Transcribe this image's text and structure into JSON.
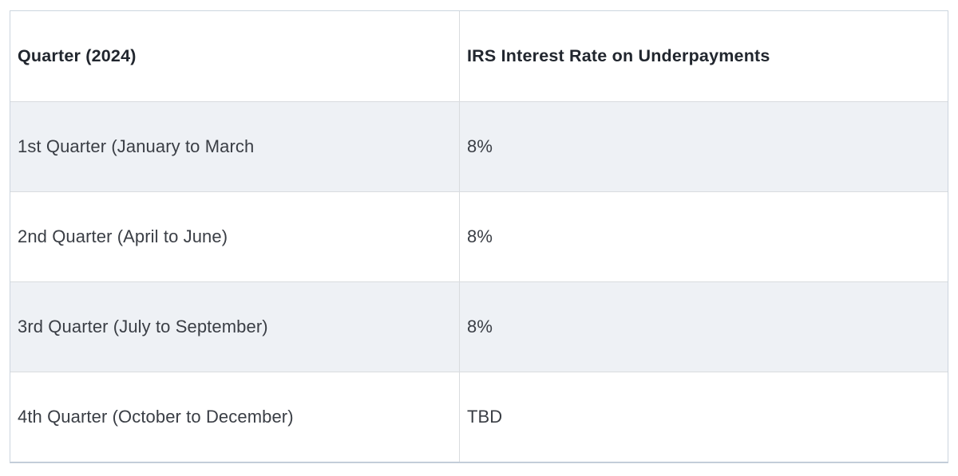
{
  "table": {
    "columns": [
      {
        "label": "Quarter (2024)"
      },
      {
        "label": "IRS Interest Rate on Underpayments"
      }
    ],
    "rows": [
      {
        "quarter": "1st Quarter (January to March",
        "rate": "8%"
      },
      {
        "quarter": "2nd Quarter (April to June)",
        "rate": "8%"
      },
      {
        "quarter": "3rd Quarter (July to September)",
        "rate": "8%"
      },
      {
        "quarter": "4th Quarter (October to December)",
        "rate": "TBD"
      }
    ],
    "colors": {
      "stripe_background": "#eef1f5",
      "border": "#d9dcdf",
      "outer_border": "#ccd5de",
      "header_text": "#21262e",
      "body_text": "#3a3e45"
    }
  },
  "chart_data": {
    "type": "table",
    "title": "",
    "columns": [
      "Quarter (2024)",
      "IRS Interest Rate on Underpayments"
    ],
    "rows": [
      [
        "1st Quarter (January to March",
        "8%"
      ],
      [
        "2nd Quarter (April to June)",
        "8%"
      ],
      [
        "3rd Quarter (July to September)",
        "8%"
      ],
      [
        "4th Quarter (October to December)",
        "TBD"
      ]
    ]
  }
}
